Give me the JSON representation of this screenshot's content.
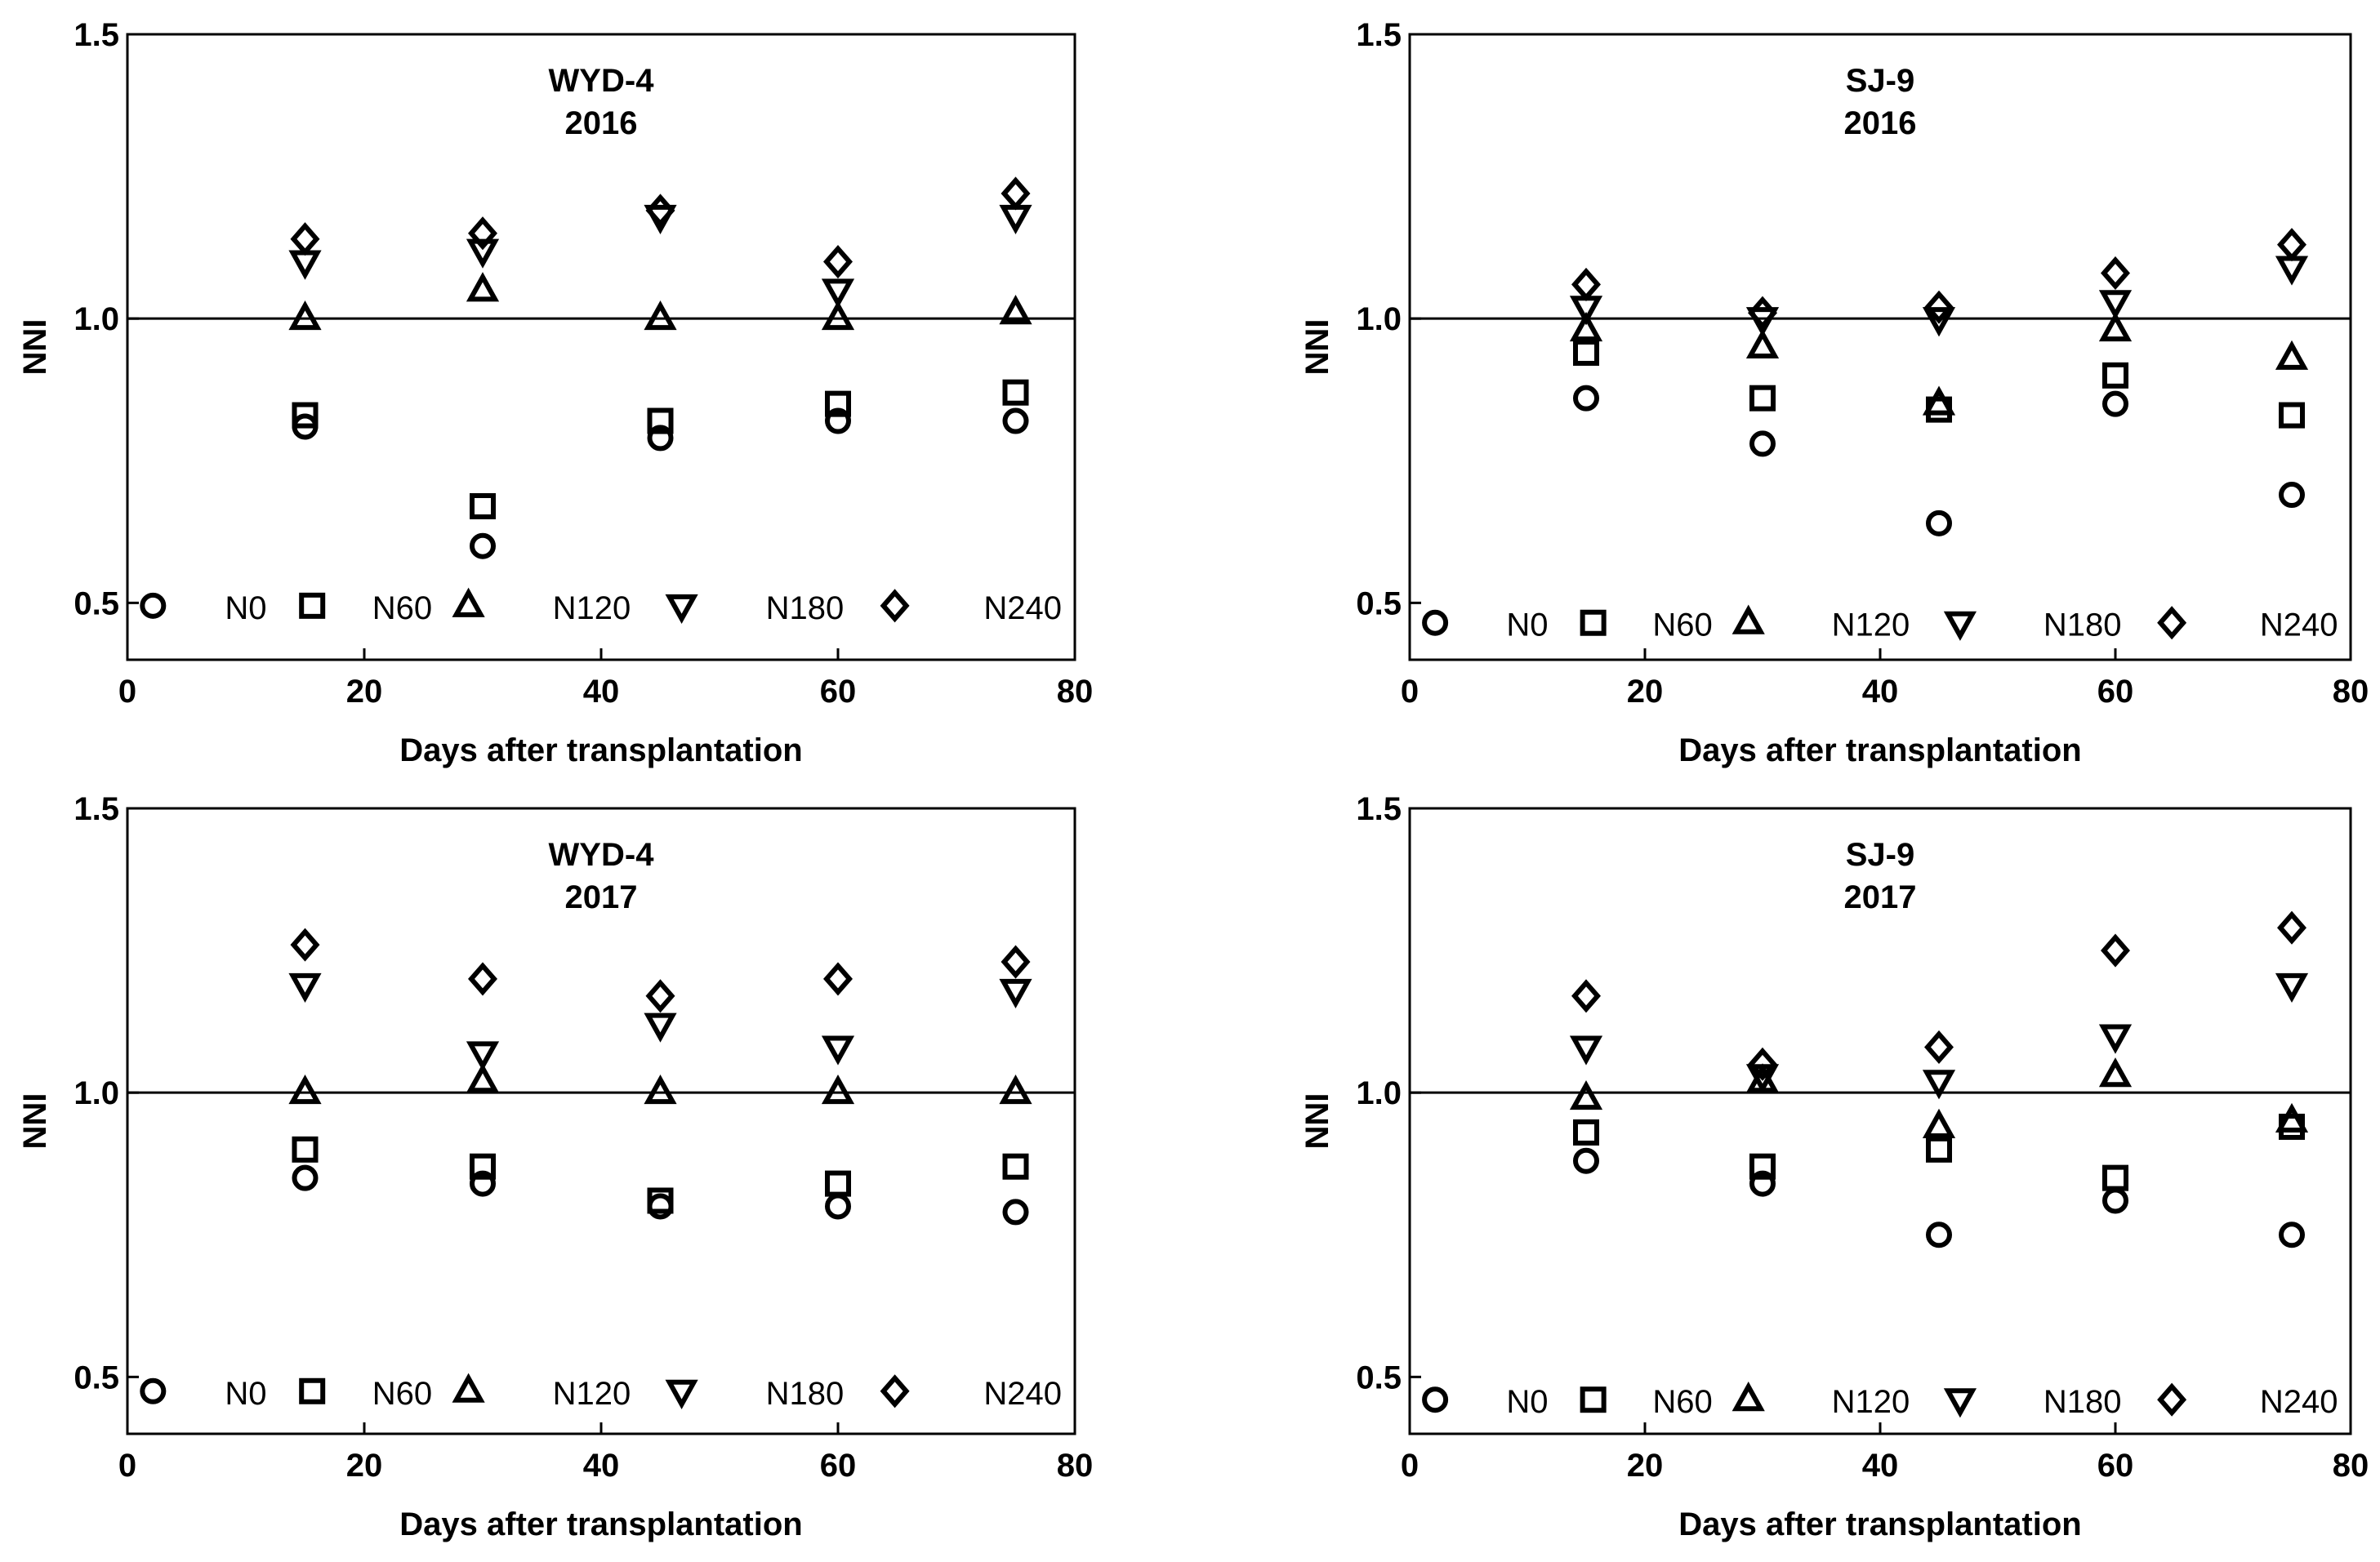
{
  "chart_data": [
    {
      "type": "scatter",
      "title_line1": "WYD-4",
      "title_line2": "2016",
      "xlabel": "Days after transplantation",
      "ylabel": "NNI",
      "xlim": [
        0,
        80
      ],
      "ylim": [
        0.4,
        1.5
      ],
      "xticks": [
        "0",
        "20",
        "40",
        "60",
        "80"
      ],
      "yticks": [
        "0.5",
        "1.0",
        "1.5"
      ],
      "reference_line": 1.0,
      "x": [
        15,
        30,
        45,
        60,
        75
      ],
      "series": [
        {
          "name": "N0",
          "marker": "circle",
          "values": [
            0.81,
            0.6,
            0.79,
            0.82,
            0.82
          ]
        },
        {
          "name": "N60",
          "marker": "square",
          "values": [
            0.83,
            0.67,
            0.82,
            0.85,
            0.87
          ]
        },
        {
          "name": "N120",
          "marker": "triangle-up",
          "values": [
            1.0,
            1.05,
            1.0,
            1.0,
            1.01
          ]
        },
        {
          "name": "N180",
          "marker": "triangle-down",
          "values": [
            1.1,
            1.12,
            1.18,
            1.05,
            1.18
          ]
        },
        {
          "name": "N240",
          "marker": "diamond",
          "values": [
            1.14,
            1.15,
            1.19,
            1.1,
            1.22
          ]
        }
      ],
      "legend": [
        "N0",
        "N60",
        "N120",
        "N180",
        "N240"
      ]
    },
    {
      "type": "scatter",
      "title_line1": "SJ-9",
      "title_line2": "2016",
      "xlabel": "Days after transplantation",
      "ylabel": "NNI",
      "xlim": [
        0,
        80
      ],
      "ylim": [
        0.4,
        1.5
      ],
      "xticks": [
        "0",
        "20",
        "40",
        "60",
        "80"
      ],
      "yticks": [
        "0.5",
        "1.0",
        "1.5"
      ],
      "reference_line": 1.0,
      "x": [
        15,
        30,
        45,
        60,
        75
      ],
      "series": [
        {
          "name": "N0",
          "marker": "circle",
          "values": [
            0.86,
            0.78,
            0.64,
            0.85,
            0.69
          ]
        },
        {
          "name": "N60",
          "marker": "square",
          "values": [
            0.94,
            0.86,
            0.84,
            0.9,
            0.83
          ]
        },
        {
          "name": "N120",
          "marker": "triangle-up",
          "values": [
            0.98,
            0.95,
            0.85,
            0.98,
            0.93
          ]
        },
        {
          "name": "N180",
          "marker": "triangle-down",
          "values": [
            1.02,
            1.0,
            1.0,
            1.03,
            1.09
          ]
        },
        {
          "name": "N240",
          "marker": "diamond",
          "values": [
            1.06,
            1.01,
            1.02,
            1.08,
            1.13
          ]
        }
      ],
      "legend": [
        "N0",
        "N60",
        "N120",
        "N180",
        "N240"
      ]
    },
    {
      "type": "scatter",
      "title_line1": "WYD-4",
      "title_line2": "2017",
      "xlabel": "Days after transplantation",
      "ylabel": "NNI",
      "xlim": [
        0,
        80
      ],
      "ylim": [
        0.4,
        1.5
      ],
      "xticks": [
        "0",
        "20",
        "40",
        "60",
        "80"
      ],
      "yticks": [
        "0.5",
        "1.0",
        "1.5"
      ],
      "reference_line": 1.0,
      "x": [
        15,
        30,
        45,
        60,
        75
      ],
      "series": [
        {
          "name": "N0",
          "marker": "circle",
          "values": [
            0.85,
            0.84,
            0.8,
            0.8,
            0.79
          ]
        },
        {
          "name": "N60",
          "marker": "square",
          "values": [
            0.9,
            0.87,
            0.81,
            0.84,
            0.87
          ]
        },
        {
          "name": "N120",
          "marker": "triangle-up",
          "values": [
            1.0,
            1.02,
            1.0,
            1.0,
            1.0
          ]
        },
        {
          "name": "N180",
          "marker": "triangle-down",
          "values": [
            1.19,
            1.07,
            1.12,
            1.08,
            1.18
          ]
        },
        {
          "name": "N240",
          "marker": "diamond",
          "values": [
            1.26,
            1.2,
            1.17,
            1.2,
            1.23
          ]
        }
      ],
      "legend": [
        "N0",
        "N60",
        "N120",
        "N180",
        "N240"
      ]
    },
    {
      "type": "scatter",
      "title_line1": "SJ-9",
      "title_line2": "2017",
      "xlabel": "Days after transplantation",
      "ylabel": "NNI",
      "xlim": [
        0,
        80
      ],
      "ylim": [
        0.4,
        1.5
      ],
      "xticks": [
        "0",
        "20",
        "40",
        "60",
        "80"
      ],
      "yticks": [
        "0.5",
        "1.0",
        "1.5"
      ],
      "reference_line": 1.0,
      "x": [
        15,
        30,
        45,
        60,
        75
      ],
      "series": [
        {
          "name": "N0",
          "marker": "circle",
          "values": [
            0.88,
            0.84,
            0.75,
            0.81,
            0.75
          ]
        },
        {
          "name": "N60",
          "marker": "square",
          "values": [
            0.93,
            0.87,
            0.9,
            0.85,
            0.94
          ]
        },
        {
          "name": "N120",
          "marker": "triangle-up",
          "values": [
            0.99,
            1.02,
            0.94,
            1.03,
            0.95
          ]
        },
        {
          "name": "N180",
          "marker": "triangle-down",
          "values": [
            1.08,
            1.03,
            1.02,
            1.1,
            1.19
          ]
        },
        {
          "name": "N240",
          "marker": "diamond",
          "values": [
            1.17,
            1.05,
            1.08,
            1.25,
            1.29
          ]
        }
      ],
      "legend": [
        "N0",
        "N60",
        "N120",
        "N180",
        "N240"
      ]
    }
  ]
}
